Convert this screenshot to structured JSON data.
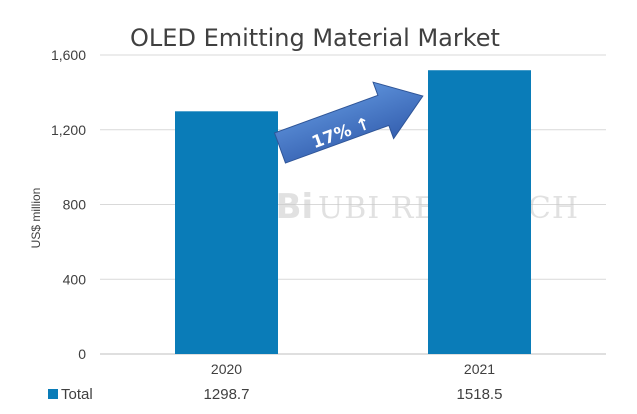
{
  "chart_data": {
    "type": "bar",
    "title": "OLED Emitting Material Market",
    "xlabel": "",
    "ylabel": "US$ million",
    "categories": [
      "2020",
      "2021"
    ],
    "series": [
      {
        "name": "Total",
        "values": [
          1298.7,
          1518.5
        ]
      }
    ],
    "ylim": [
      0,
      1600
    ],
    "yticks": [
      0,
      400,
      800,
      1200,
      1600
    ],
    "ytick_labels": [
      "0",
      "400",
      "800",
      "1,200",
      "1,600"
    ],
    "table_values": [
      "1298.7",
      "1518.5"
    ],
    "annotation": "17% ↑",
    "watermark": "UBI RESEARCH",
    "bar_color": "#0a7cb8",
    "arrow_color": "#4472c4",
    "grid": true,
    "legend": "data-table-below"
  }
}
